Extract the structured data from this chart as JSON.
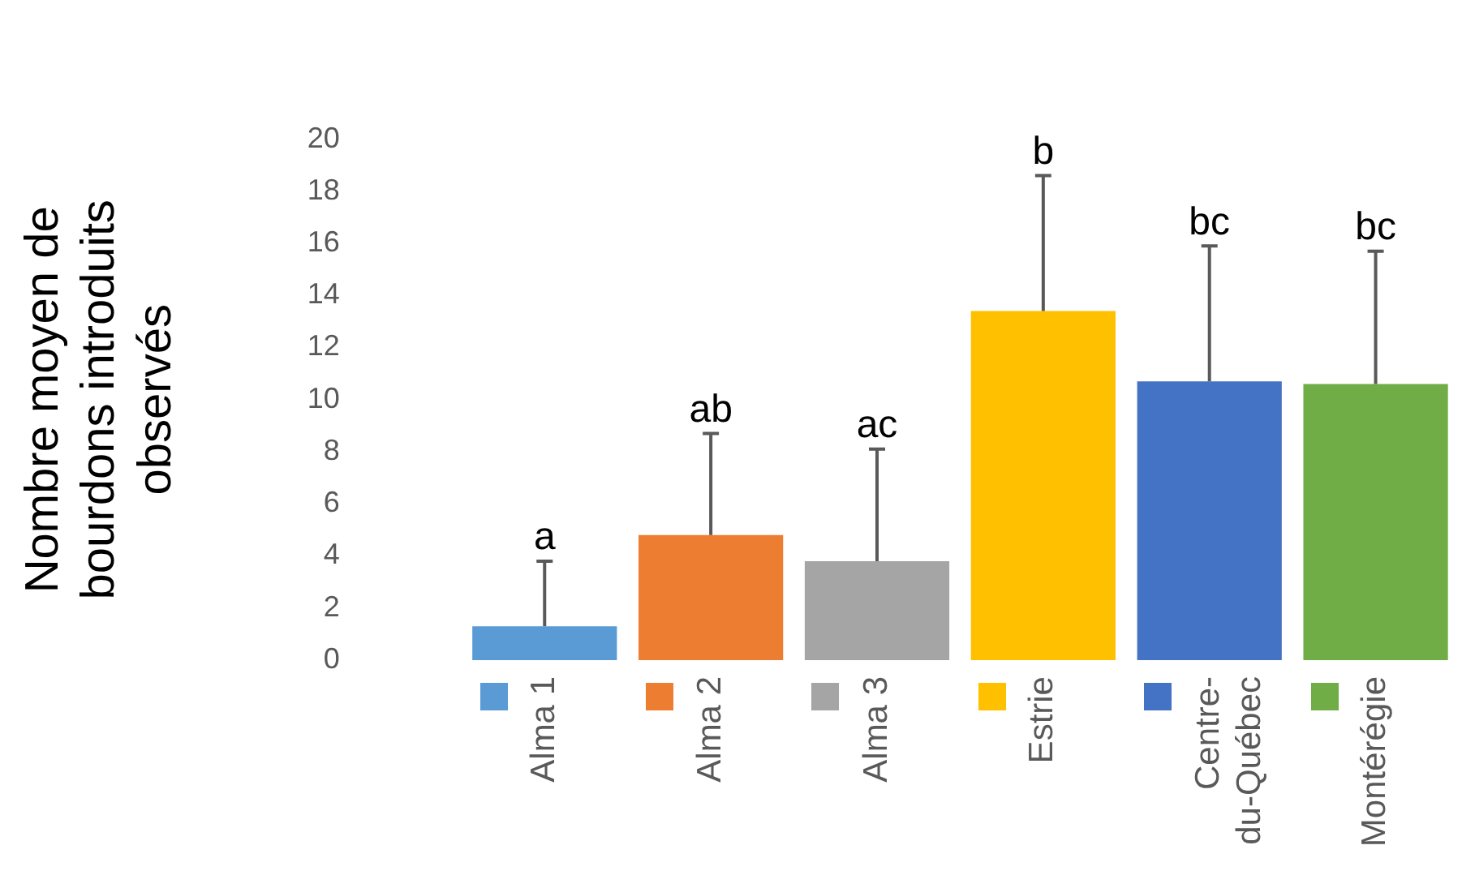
{
  "chart_data": {
    "type": "bar",
    "ylabel": "Nombre moyen de bourdons introduits observés",
    "categories": [
      "Alma 1",
      "Alma 2",
      "Alma 3",
      "Estrie",
      "Centre-du-Québec",
      "Montérégie"
    ],
    "values": [
      1.3,
      4.8,
      3.8,
      13.4,
      10.7,
      10.6
    ],
    "colors": [
      "#5b9bd5",
      "#ed7d31",
      "#a5a5a5",
      "#ffc000",
      "#4472c4",
      "#70ad47"
    ],
    "errors": [
      [
        1.3,
        3.8
      ],
      [
        4.8,
        8.7
      ],
      [
        3.8,
        8.1
      ],
      [
        13.4,
        18.6
      ],
      [
        10.7,
        15.9
      ],
      [
        10.6,
        15.7
      ]
    ],
    "ylim": [
      0,
      20
    ],
    "yticks": [
      0,
      2,
      4,
      6,
      8,
      10,
      12,
      14,
      16,
      18,
      20
    ],
    "grid": false,
    "annotations": [
      {
        "text": "a",
        "x": "Alma 1",
        "y": 3.8
      },
      {
        "text": "ab",
        "x": "Alma 2",
        "y": 8.7
      },
      {
        "text": "ac",
        "x": "Alma 3",
        "y": 8.1
      },
      {
        "text": "b",
        "x": "Estrie",
        "y": 18.6
      },
      {
        "text": "bc",
        "x": "Centre-du-Québec",
        "y": 15.9
      },
      {
        "text": "bc",
        "x": "Montérégie",
        "y": 15.7
      }
    ]
  }
}
